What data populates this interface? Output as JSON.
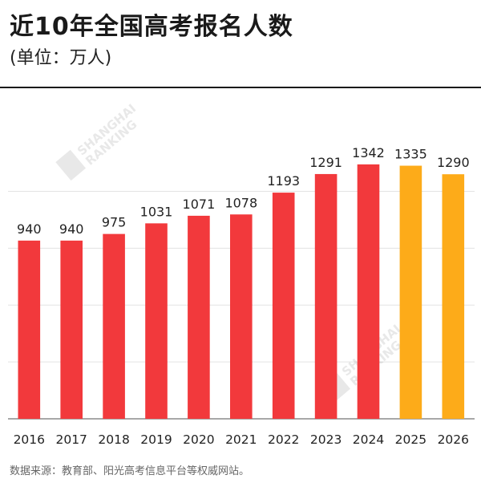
{
  "header": {
    "title": "近10年全国高考报名人数",
    "subtitle": "(单位：万人)"
  },
  "footer": {
    "source": "数据来源：教育部、阳光高考信息平台等权威网站。"
  },
  "watermark": {
    "text1": "SHANGHAI",
    "text2": "RANKING"
  },
  "colors": {
    "actual": "#f2393c",
    "forecast": "#fdab19",
    "grid": "#e3e3e3",
    "axis": "#8c8c8c"
  },
  "chart_data": {
    "type": "bar",
    "categories": [
      "2016",
      "2017",
      "2018",
      "2019",
      "2020",
      "2021",
      "2022",
      "2023",
      "2024",
      "2025",
      "2026"
    ],
    "values": [
      940,
      940,
      975,
      1031,
      1071,
      1078,
      1193,
      1291,
      1342,
      1335,
      1290
    ],
    "bar_colors": [
      "#f2393c",
      "#f2393c",
      "#f2393c",
      "#f2393c",
      "#f2393c",
      "#f2393c",
      "#f2393c",
      "#f2393c",
      "#f2393c",
      "#fdab19",
      "#fdab19"
    ],
    "title": "",
    "xlabel": "",
    "ylabel": "",
    "ylim": [
      0,
      1400
    ],
    "grid": true,
    "gridlines": [
      300,
      600,
      900,
      1200
    ],
    "legend": "none"
  }
}
